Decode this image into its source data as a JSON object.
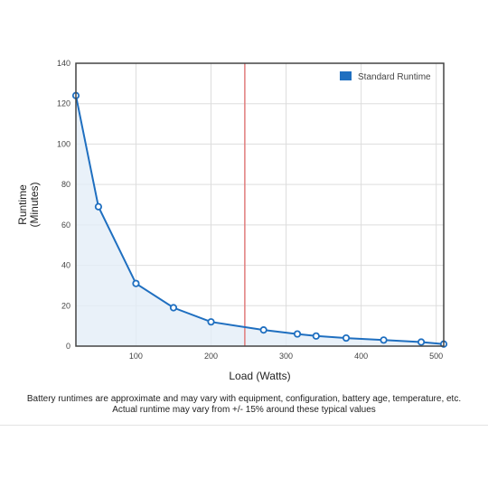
{
  "chart_data": {
    "type": "line",
    "xlabel": "Load (Watts)",
    "ylabel_lines": [
      "Runtime",
      "(Minutes)"
    ],
    "xlim": [
      20,
      510
    ],
    "ylim": [
      0,
      140
    ],
    "x_ticks": [
      100,
      200,
      300,
      400,
      500
    ],
    "y_ticks": [
      0,
      20,
      40,
      60,
      80,
      100,
      120,
      140
    ],
    "grid": true,
    "legend": {
      "position": "top-right"
    },
    "reference_line_x": 245,
    "series": [
      {
        "name": "Standard Runtime",
        "color": "#1f6fc0",
        "points": [
          [
            20,
            124
          ],
          [
            50,
            69
          ],
          [
            100,
            31
          ],
          [
            150,
            19
          ],
          [
            200,
            12
          ],
          [
            270,
            8
          ],
          [
            315,
            6
          ],
          [
            340,
            5
          ],
          [
            380,
            4
          ],
          [
            430,
            3
          ],
          [
            480,
            2
          ],
          [
            510,
            1
          ]
        ]
      }
    ]
  },
  "footnote": {
    "line1": "Battery runtimes are approximate and may vary with equipment, configuration, battery age, temperature, etc.",
    "line2": "Actual runtime may vary from +/- 15% around these typical values"
  },
  "colors": {
    "grid": "#dddddd",
    "axis": "#444444",
    "reference_line": "#e07b7b",
    "area_fill": "#e3edf7"
  }
}
